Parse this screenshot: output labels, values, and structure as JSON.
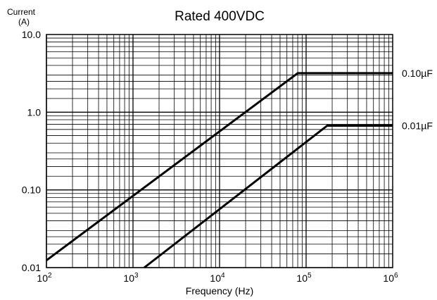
{
  "chart_data": {
    "type": "line",
    "title": "Rated 400VDC",
    "xlabel": "Frequency (Hz)",
    "ylabel_line1": "Current",
    "ylabel_line2": "(A)",
    "x_scale": "log",
    "y_scale": "log",
    "xlim": [
      100,
      1000000
    ],
    "ylim": [
      0.01,
      10
    ],
    "grid": true,
    "x_ticks": [
      {
        "value": 100,
        "base": "10",
        "exp": "2"
      },
      {
        "value": 1000,
        "base": "10",
        "exp": "3"
      },
      {
        "value": 10000,
        "base": "10",
        "exp": "4"
      },
      {
        "value": 100000,
        "base": "10",
        "exp": "5"
      },
      {
        "value": 1000000,
        "base": "10",
        "exp": "6"
      }
    ],
    "y_ticks": [
      {
        "value": 0.01,
        "label": "0.01"
      },
      {
        "value": 0.1,
        "label": "0.10"
      },
      {
        "value": 1,
        "label": "1.0"
      },
      {
        "value": 10,
        "label": "10.0"
      }
    ],
    "series": [
      {
        "name": "0.10µF",
        "x": [
          100,
          80000,
          1000000
        ],
        "y": [
          0.0124,
          3.18,
          3.18
        ]
      },
      {
        "name": "0.01µF",
        "x": [
          1350,
          175000,
          1000000
        ],
        "y": [
          0.01,
          0.67,
          0.67
        ]
      }
    ]
  }
}
